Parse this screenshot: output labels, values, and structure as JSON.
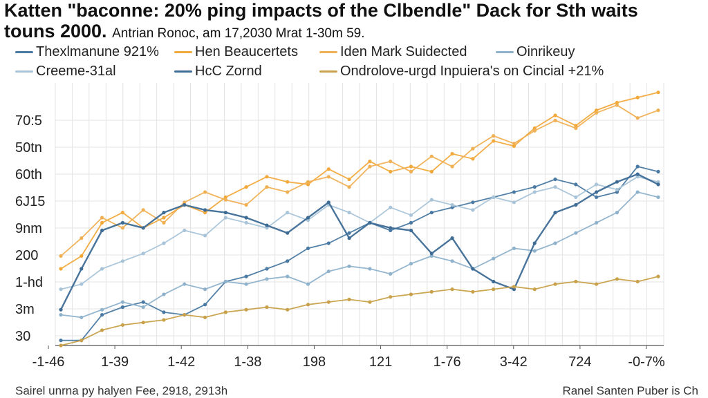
{
  "chart_data": {
    "type": "line",
    "title": "Katten \"baconne: 20% ping impacts of the Clbendle\" Dack for Sth waits touns 2000.",
    "title_line1": "Katten \"baconne: 20% ping impacts of the Clbendle\" Dack for Sth waits",
    "title_line2": "touns 2000.",
    "subtitle": "Antrian Ronoc, am 17,2030 Mrat 1-30m 59.",
    "xlabel": "",
    "ylabel": "",
    "x_ticks": [
      "-1-46",
      "1-39",
      "1-42",
      "1-38",
      "198",
      "121",
      "1-76",
      "3-42",
      "724",
      "-0-7%"
    ],
    "y_ticks": [
      "70:5",
      "50tn",
      "60th",
      "6J15",
      "9nm",
      "200",
      "1-hd",
      "3m",
      "30"
    ],
    "ylim": [
      0,
      100
    ],
    "grid": true,
    "legend_position": "top",
    "series": [
      {
        "name": "Thexlmanune 921%",
        "color": "#4a7aa3",
        "values": [
          2,
          2,
          12,
          15,
          17,
          13,
          12,
          16,
          25,
          27,
          30,
          33,
          38,
          40,
          44,
          48,
          45,
          48,
          52,
          54,
          56,
          58,
          60,
          62,
          65,
          63,
          58,
          60,
          70,
          68
        ]
      },
      {
        "name": "Hen Beaucertets",
        "color": "#f2a93b",
        "values": [
          30,
          35,
          48,
          52,
          46,
          50,
          55,
          52,
          58,
          62,
          66,
          64,
          63,
          69,
          65,
          72,
          68,
          70,
          68,
          75,
          73,
          80,
          78,
          85,
          90,
          86,
          92,
          95,
          97,
          99
        ]
      },
      {
        "name": "Iden Mark Suidected",
        "color": "#f0b054",
        "values": [
          35,
          42,
          50,
          46,
          53,
          48,
          56,
          60,
          57,
          55,
          62,
          60,
          64,
          66,
          62,
          70,
          72,
          68,
          74,
          70,
          77,
          82,
          79,
          84,
          88,
          85,
          91,
          94,
          89,
          92
        ]
      },
      {
        "name": "Oinrikeuy",
        "color": "#8fb2cc",
        "values": [
          12,
          11,
          14,
          17,
          15,
          20,
          24,
          22,
          25,
          24,
          26,
          27,
          24,
          29,
          31,
          30,
          28,
          32,
          35,
          33,
          30,
          34,
          38,
          37,
          40,
          44,
          48,
          52,
          60,
          58
        ]
      },
      {
        "name": "Creeme-31al",
        "color": "#a9c4d8",
        "values": [
          22,
          24,
          30,
          33,
          36,
          40,
          45,
          43,
          50,
          48,
          46,
          52,
          49,
          55,
          52,
          48,
          54,
          51,
          57,
          55,
          53,
          58,
          56,
          60,
          62,
          58,
          63,
          61,
          66,
          64
        ]
      },
      {
        "name": "HcC Zornd",
        "color": "#3e6c95",
        "values": [
          14,
          30,
          45,
          48,
          46,
          52,
          55,
          53,
          52,
          50,
          47,
          44,
          50,
          56,
          42,
          48,
          46,
          45,
          36,
          42,
          30,
          25,
          22,
          40,
          52,
          55,
          60,
          64,
          67,
          63
        ]
      },
      {
        "name": "Ondrolove-urgd Inpuiera's on Cincial +21%",
        "color": "#c8a14a",
        "values": [
          0,
          2,
          6,
          8,
          9,
          10,
          12,
          11,
          13,
          14,
          15,
          14,
          16,
          17,
          18,
          17,
          19,
          20,
          21,
          22,
          21,
          22,
          23,
          22,
          24,
          25,
          24,
          26,
          25,
          27
        ]
      }
    ]
  },
  "footer": {
    "source": "Sairel unrna py halyen Fee, 2918, 2913h",
    "credit": "Ranel Santen Puber is Ch"
  },
  "colors": {
    "grid": "#e3e3e3",
    "axis": "#555555"
  }
}
